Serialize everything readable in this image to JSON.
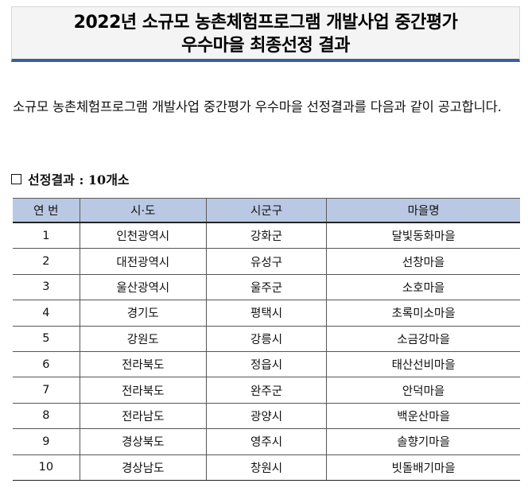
{
  "title": {
    "line1": "2022년 소규모 농촌체험프로그램 개발사업 중간평가",
    "line2": "우수마을 최종선정 결과"
  },
  "intro": "소규모 농촌체험프로그램 개발사업 중간평가 우수마을 선정결과를 다음과 같이 공고합니다.",
  "section": {
    "label": "선정결과 : 10개소"
  },
  "table": {
    "headers": [
      "연 번",
      "시·도",
      "시군구",
      "마을명"
    ],
    "rows": [
      [
        "1",
        "인천광역시",
        "강화군",
        "달빛동화마을"
      ],
      [
        "2",
        "대전광역시",
        "유성구",
        "선창마을"
      ],
      [
        "3",
        "울산광역시",
        "울주군",
        "소호마을"
      ],
      [
        "4",
        "경기도",
        "평택시",
        "초록미소마을"
      ],
      [
        "5",
        "강원도",
        "강릉시",
        "소금강마을"
      ],
      [
        "6",
        "전라북도",
        "정읍시",
        "태산선비마을"
      ],
      [
        "7",
        "전라북도",
        "완주군",
        "안덕마을"
      ],
      [
        "8",
        "전라남도",
        "광양시",
        "백운산마을"
      ],
      [
        "9",
        "경상북도",
        "영주시",
        "솔향기마을"
      ],
      [
        "10",
        "경상남도",
        "창원시",
        "빗돌배기마을"
      ]
    ]
  }
}
